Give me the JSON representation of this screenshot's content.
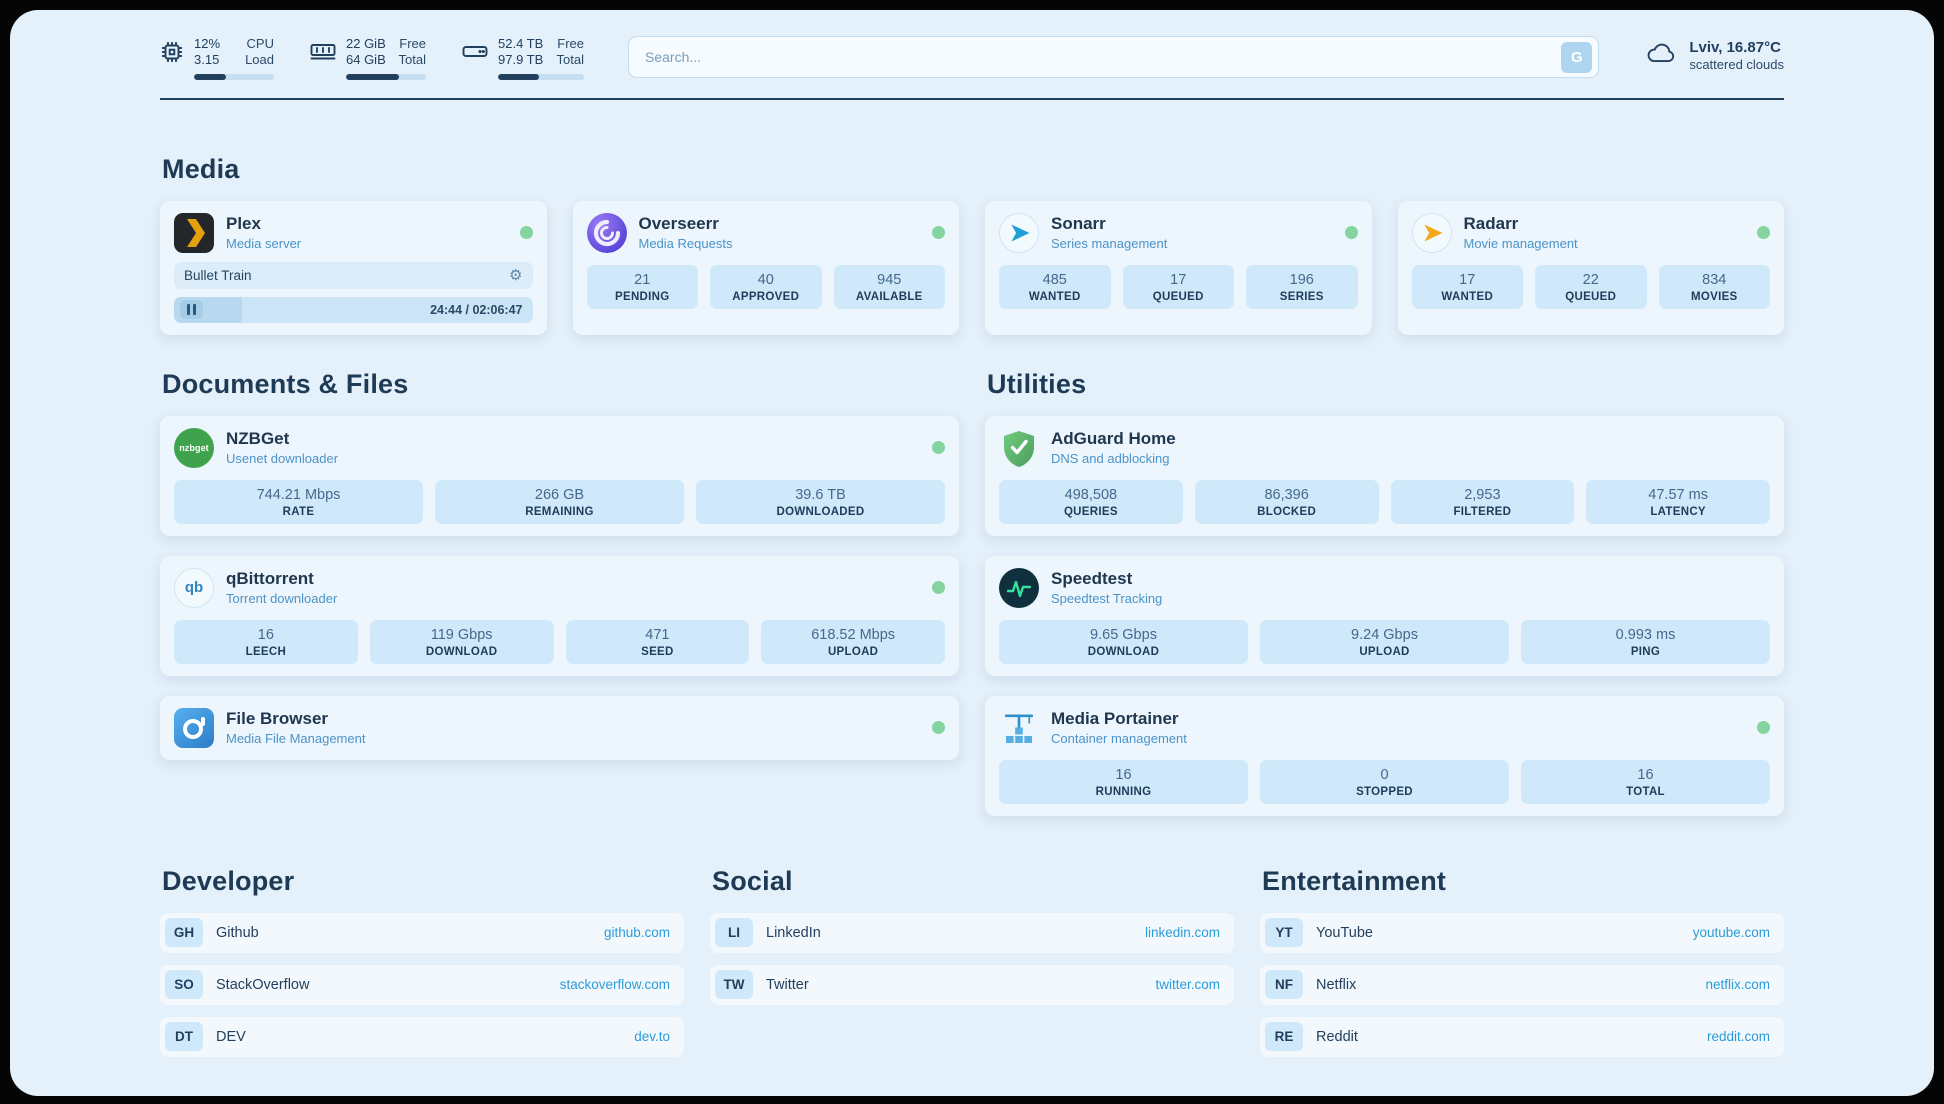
{
  "colors": {
    "background": "#e4f0fa",
    "card": "#edf6fd",
    "tile": "#cfe9fb",
    "text_primary": "#20374f",
    "text_secondary": "#4b93c8",
    "link": "#2b9cd8",
    "status_online": "#84d4a0",
    "plex_brand": "#e5a00d",
    "progress": "#22405e"
  },
  "topbar": {
    "cpu": {
      "value": "12%",
      "load": "3.15",
      "label1": "CPU",
      "label2": "Load",
      "progress": 40
    },
    "ram": {
      "free": "22 GiB",
      "total": "64 GiB",
      "label1": "Free",
      "label2": "Total",
      "progress": 66
    },
    "disk": {
      "free": "52.4 TB",
      "total": "97.9 TB",
      "label1": "Free",
      "label2": "Total",
      "progress": 48
    },
    "search": {
      "placeholder": "Search...",
      "button_label": "G"
    },
    "weather": {
      "location": "Lviv, 16.87°C",
      "condition": "scattered clouds"
    }
  },
  "media": {
    "heading": "Media",
    "plex": {
      "name": "Plex",
      "subtitle": "Media server",
      "status": "online",
      "now_playing": "Bullet Train",
      "time": "24:44 / 02:06:47",
      "progress": 19
    },
    "overseerr": {
      "name": "Overseerr",
      "subtitle": "Media Requests",
      "status": "online",
      "stats": [
        {
          "value": "21",
          "label": "PENDING"
        },
        {
          "value": "40",
          "label": "APPROVED"
        },
        {
          "value": "945",
          "label": "AVAILABLE"
        }
      ]
    },
    "sonarr": {
      "name": "Sonarr",
      "subtitle": "Series management",
      "status": "online",
      "stats": [
        {
          "value": "485",
          "label": "WANTED"
        },
        {
          "value": "17",
          "label": "QUEUED"
        },
        {
          "value": "196",
          "label": "SERIES"
        }
      ]
    },
    "radarr": {
      "name": "Radarr",
      "subtitle": "Movie management",
      "status": "online",
      "stats": [
        {
          "value": "17",
          "label": "WANTED"
        },
        {
          "value": "22",
          "label": "QUEUED"
        },
        {
          "value": "834",
          "label": "MOVIES"
        }
      ]
    }
  },
  "documents": {
    "heading": "Documents & Files",
    "nzbget": {
      "name": "NZBGet",
      "subtitle": "Usenet downloader",
      "status": "online",
      "icon_text": "nzbget",
      "stats": [
        {
          "value": "744.21 Mbps",
          "label": "RATE"
        },
        {
          "value": "266 GB",
          "label": "REMAINING"
        },
        {
          "value": "39.6 TB",
          "label": "DOWNLOADED"
        }
      ]
    },
    "qbittorrent": {
      "name": "qBittorrent",
      "subtitle": "Torrent downloader",
      "status": "online",
      "icon_text": "qb",
      "stats": [
        {
          "value": "16",
          "label": "LEECH"
        },
        {
          "value": "119 Gbps",
          "label": "DOWNLOAD"
        },
        {
          "value": "471",
          "label": "SEED"
        },
        {
          "value": "618.52 Mbps",
          "label": "UPLOAD"
        }
      ]
    },
    "filebrowser": {
      "name": "File Browser",
      "subtitle": "Media File Management",
      "status": "online"
    }
  },
  "utilities": {
    "heading": "Utilities",
    "adguard": {
      "name": "AdGuard Home",
      "subtitle": "DNS and adblocking",
      "stats": [
        {
          "value": "498,508",
          "label": "QUERIES"
        },
        {
          "value": "86,396",
          "label": "BLOCKED"
        },
        {
          "value": "2,953",
          "label": "FILTERED"
        },
        {
          "value": "47.57 ms",
          "label": "LATENCY"
        }
      ]
    },
    "speedtest": {
      "name": "Speedtest",
      "subtitle": "Speedtest Tracking",
      "stats": [
        {
          "value": "9.65 Gbps",
          "label": "DOWNLOAD"
        },
        {
          "value": "9.24 Gbps",
          "label": "UPLOAD"
        },
        {
          "value": "0.993 ms",
          "label": "PING"
        }
      ]
    },
    "portainer": {
      "name": "Media Portainer",
      "subtitle": "Container management",
      "status": "online",
      "stats": [
        {
          "value": "16",
          "label": "RUNNING"
        },
        {
          "value": "0",
          "label": "STOPPED"
        },
        {
          "value": "16",
          "label": "TOTAL"
        }
      ]
    }
  },
  "bookmark_groups": [
    {
      "heading": "Developer",
      "items": [
        {
          "abbr": "GH",
          "name": "Github",
          "url": "github.com"
        },
        {
          "abbr": "SO",
          "name": "StackOverflow",
          "url": "stackoverflow.com"
        },
        {
          "abbr": "DT",
          "name": "DEV",
          "url": "dev.to"
        }
      ]
    },
    {
      "heading": "Social",
      "items": [
        {
          "abbr": "LI",
          "name": "LinkedIn",
          "url": "linkedin.com"
        },
        {
          "abbr": "TW",
          "name": "Twitter",
          "url": "twitter.com"
        }
      ]
    },
    {
      "heading": "Entertainment",
      "items": [
        {
          "abbr": "YT",
          "name": "YouTube",
          "url": "youtube.com"
        },
        {
          "abbr": "NF",
          "name": "Netflix",
          "url": "netflix.com"
        },
        {
          "abbr": "RE",
          "name": "Reddit",
          "url": "reddit.com"
        }
      ]
    }
  ]
}
